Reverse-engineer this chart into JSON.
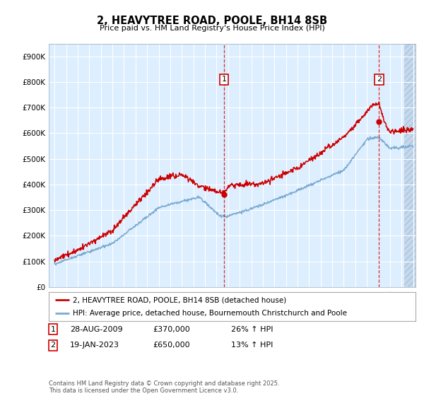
{
  "title": "2, HEAVYTREE ROAD, POOLE, BH14 8SB",
  "subtitle": "Price paid vs. HM Land Registry's House Price Index (HPI)",
  "fig_bg_color": "#ffffff",
  "plot_bg_color": "#ddeeff",
  "ytick_labels": [
    "£0",
    "£100K",
    "£200K",
    "£300K",
    "£400K",
    "£500K",
    "£600K",
    "£700K",
    "£800K",
    "£900K"
  ],
  "yticks": [
    0,
    100000,
    200000,
    300000,
    400000,
    500000,
    600000,
    700000,
    800000,
    900000
  ],
  "xmin": 1994.5,
  "xmax": 2026.2,
  "ymin": 0,
  "ymax": 950000,
  "red_line_color": "#cc0000",
  "blue_line_color": "#7aaad0",
  "marker1_x": 2009.65,
  "marker1_y": 370000,
  "marker1_dot_y": 360000,
  "marker2_x": 2023.05,
  "marker2_y": 650000,
  "marker2_dot_y": 645000,
  "hatch_start": 2025.2,
  "legend_line1": "2, HEAVYTREE ROAD, POOLE, BH14 8SB (detached house)",
  "legend_line2": "HPI: Average price, detached house, Bournemouth Christchurch and Poole",
  "annotation1_date": "28-AUG-2009",
  "annotation1_price": "£370,000",
  "annotation1_hpi": "26% ↑ HPI",
  "annotation2_date": "19-JAN-2023",
  "annotation2_price": "£650,000",
  "annotation2_hpi": "13% ↑ HPI",
  "footer": "Contains HM Land Registry data © Crown copyright and database right 2025.\nThis data is licensed under the Open Government Licence v3.0."
}
